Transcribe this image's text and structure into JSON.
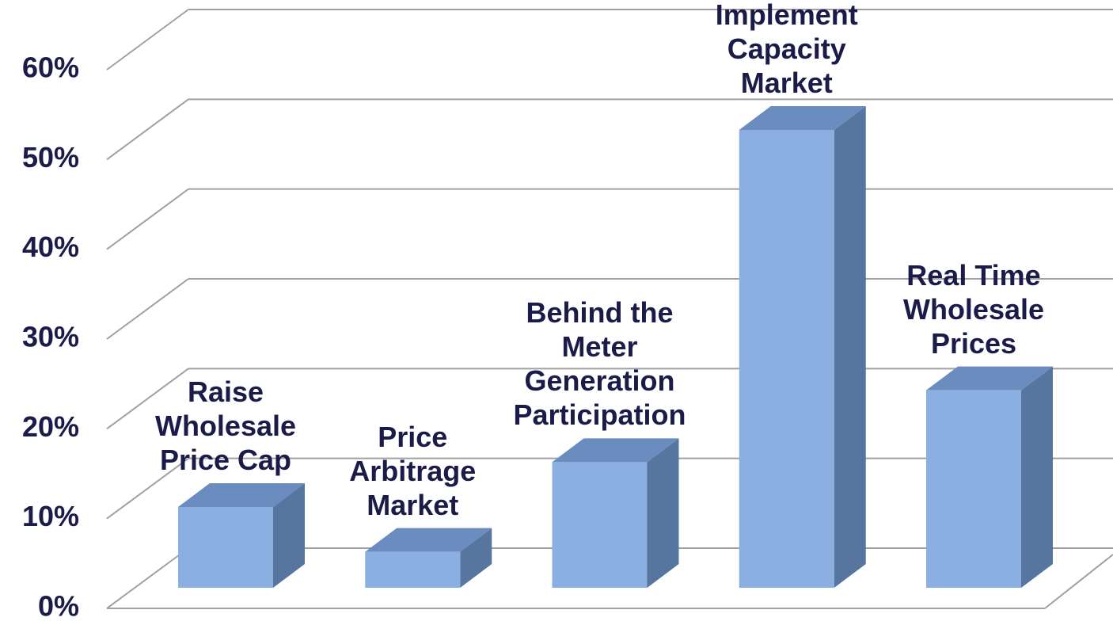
{
  "chart_data": {
    "type": "bar3d",
    "categories": [
      "Raise\nWholesale\nPrice Cap",
      "Price\nArbitrage\nMarket",
      "Behind the\nMeter\nGeneration\nParticipation",
      "Implement\nCapacity\nMarket",
      "Real Time\nWholesale\nPrices"
    ],
    "values": [
      9,
      4,
      14,
      51,
      22
    ],
    "color": "#8aafe0",
    "ylim": [
      0,
      60
    ],
    "yticks": [
      {
        "value": 0,
        "label": "0%"
      },
      {
        "value": 10,
        "label": "10%"
      },
      {
        "value": 20,
        "label": "20%"
      },
      {
        "value": 30,
        "label": "30%"
      },
      {
        "value": 40,
        "label": "40%"
      },
      {
        "value": 50,
        "label": "50%"
      },
      {
        "value": 60,
        "label": "60%"
      }
    ],
    "grid": true
  }
}
